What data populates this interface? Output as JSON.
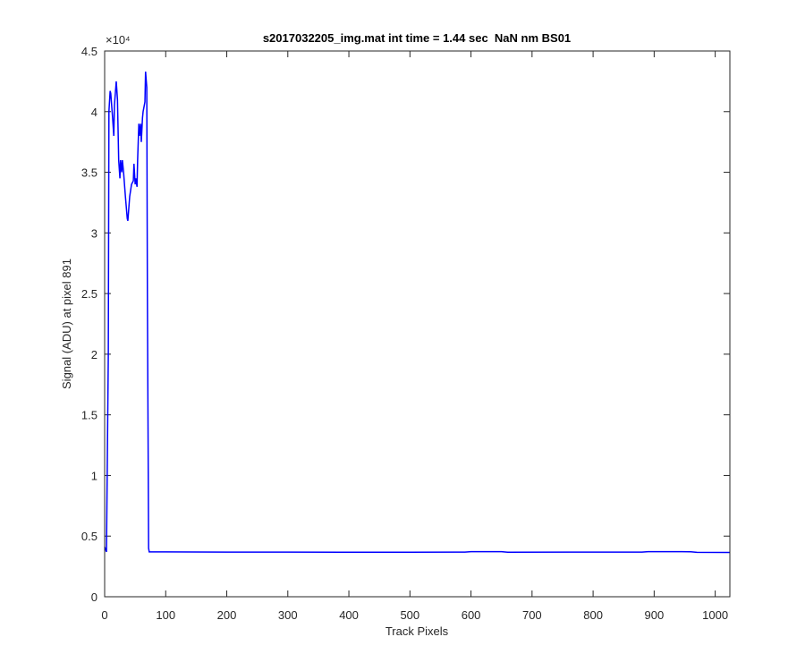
{
  "chart_data": {
    "type": "line",
    "title": "s2017032205_img.mat int time = 1.44 sec  NaN nm BS01",
    "x_label": "Track Pixels",
    "y_label": "Signal (ADU) at pixel 891",
    "y_exponent_label": "×10⁴",
    "color": "#0000ff",
    "x": [
      0,
      3,
      6,
      7,
      9,
      10,
      13,
      15,
      16,
      19,
      21,
      23,
      25,
      26,
      28,
      29,
      31,
      34,
      37,
      38,
      41,
      44,
      47,
      48,
      50,
      51,
      53,
      54,
      56,
      57,
      59,
      60,
      62,
      63,
      66,
      67,
      69,
      70,
      72,
      73,
      100,
      200,
      300,
      400,
      500,
      590,
      600,
      650,
      660,
      800,
      880,
      890,
      960,
      970,
      1024
    ],
    "values": [
      0.41,
      0.37,
      2.0,
      4.0,
      4.17,
      4.15,
      3.95,
      3.8,
      4.05,
      4.25,
      4.1,
      3.6,
      3.45,
      3.6,
      3.5,
      3.6,
      3.5,
      3.3,
      3.12,
      3.1,
      3.3,
      3.4,
      3.43,
      3.57,
      3.4,
      3.45,
      3.38,
      3.6,
      3.9,
      3.8,
      3.9,
      3.75,
      3.95,
      4.0,
      4.08,
      4.33,
      4.2,
      2.5,
      0.4,
      0.37,
      0.37,
      0.368,
      0.368,
      0.367,
      0.367,
      0.368,
      0.372,
      0.372,
      0.367,
      0.368,
      0.368,
      0.372,
      0.371,
      0.366,
      0.365
    ],
    "xlim": [
      0,
      1024
    ],
    "xticks": [
      0,
      100,
      200,
      300,
      400,
      500,
      600,
      700,
      800,
      900,
      1000
    ],
    "ylim": [
      0,
      4.5
    ],
    "yticks": [
      0,
      0.5,
      1,
      1.5,
      2,
      2.5,
      3,
      3.5,
      4,
      4.5
    ],
    "grid": false
  }
}
